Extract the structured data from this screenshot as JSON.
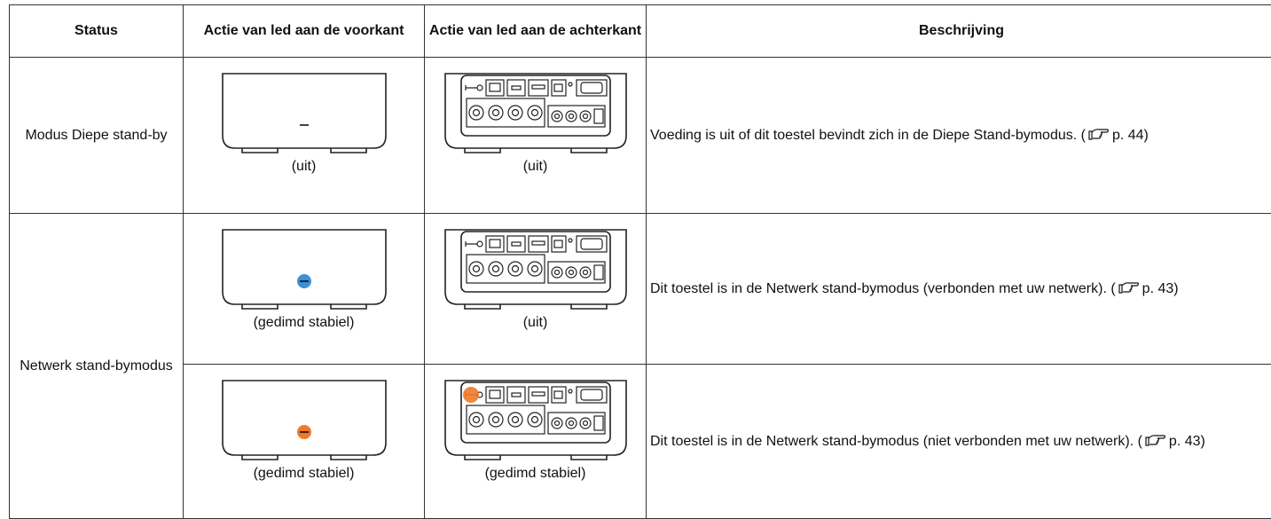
{
  "table": {
    "header": [
      "Status",
      "Actie van led aan de voorkant",
      "Actie van led aan de achterkant",
      "Beschrijving"
    ],
    "rows": [
      {
        "status": "Modus Diepe stand-by",
        "front": "(uit)",
        "rear": "(uit)",
        "description": "Voeding is uit of dit toestel bevindt zich in de Diepe Stand-bymodus.",
        "ref_before": "(",
        "ref_after": "p. 44)"
      },
      {
        "status": "Netwerk stand-bymodus",
        "front": "(gedimd stabiel)",
        "rear": "(uit)",
        "front_led_color": "#3d8fd6",
        "description": "Dit toestel is in de Netwerk stand-bymodus (verbonden met uw netwerk).",
        "ref_before": "(",
        "ref_after": "p. 43)"
      },
      {
        "front": "(gedimd stabiel)",
        "rear": "(gedimd stabiel)",
        "front_led_color": "#f07a2a",
        "rear_led_color": "#f07a2a",
        "description": "Dit toestel is in de Netwerk stand-bymodus (niet verbonden met uw netwerk).",
        "ref_before": "(",
        "ref_after": "p. 43)"
      }
    ]
  }
}
